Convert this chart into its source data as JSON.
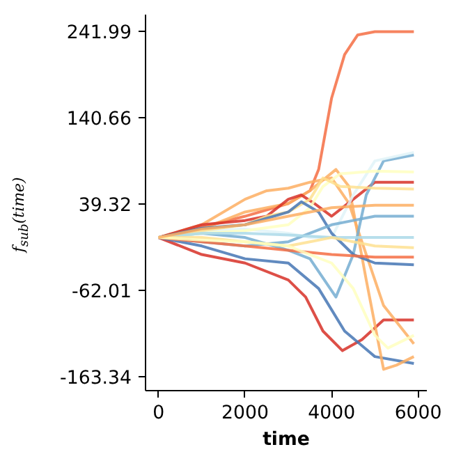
{
  "chart_data": {
    "type": "line",
    "xlabel": "time",
    "ylabel": "f$_{sub}$(time)",
    "xlim": [
      -300,
      6200
    ],
    "ylim": [
      -180,
      262
    ],
    "xticks": [
      0,
      2000,
      4000,
      6000
    ],
    "yticks": [
      241.99,
      140.66,
      39.32,
      -62.01,
      -163.34
    ],
    "grid": false,
    "line_style": "solid",
    "marker": "none",
    "series": [
      {
        "color": "#f46d43",
        "x": [
          0,
          1000,
          2000,
          3000,
          3500,
          3700,
          4000,
          4300,
          4600,
          5000,
          5900
        ],
        "values": [
          0,
          12,
          25,
          40,
          55,
          80,
          164,
          215,
          238,
          242,
          242
        ]
      },
      {
        "color": "#d73027",
        "x": [
          0,
          1000,
          2000,
          3000,
          3400,
          3800,
          4250,
          4700,
          5200,
          5900
        ],
        "values": [
          0,
          -20,
          -30,
          -50,
          -70,
          -110,
          -133,
          -120,
          -97,
          -97
        ]
      },
      {
        "color": "#4575b4",
        "x": [
          0,
          1000,
          2000,
          3000,
          3700,
          4300,
          5000,
          5900
        ],
        "values": [
          0,
          -10,
          -25,
          -30,
          -60,
          -110,
          -140,
          -148
        ]
      },
      {
        "color": "#fdae61",
        "x": [
          0,
          1000,
          2000,
          3000,
          3500,
          4100,
          4400,
          4800,
          5200,
          5500,
          5900
        ],
        "values": [
          0,
          10,
          30,
          40,
          55,
          80,
          60,
          -50,
          -155,
          -150,
          -140
        ]
      },
      {
        "color": "#fdae61",
        "x": [
          0,
          1000,
          2000,
          2500,
          3000,
          3500,
          4000,
          4400,
          4800,
          5200,
          5900
        ],
        "values": [
          0,
          15,
          45,
          55,
          58,
          65,
          70,
          40,
          -20,
          -80,
          -125
        ]
      },
      {
        "color": "#d73027",
        "x": [
          0,
          1000,
          2000,
          2500,
          3000,
          3300,
          3600,
          4000,
          4500,
          5000,
          5900
        ],
        "values": [
          0,
          15,
          20,
          25,
          45,
          50,
          40,
          25,
          45,
          65,
          65
        ]
      },
      {
        "color": "#74add1",
        "x": [
          0,
          1000,
          2000,
          3000,
          3500,
          4100,
          4500,
          4800,
          5200,
          5900
        ],
        "values": [
          0,
          5,
          0,
          -15,
          -25,
          -70,
          -20,
          50,
          90,
          97
        ]
      },
      {
        "color": "#e0f3f8",
        "x": [
          0,
          1000,
          2000,
          3000,
          3500,
          4000,
          4500,
          5000,
          5900
        ],
        "values": [
          0,
          8,
          10,
          5,
          0,
          0,
          50,
          90,
          100
        ]
      },
      {
        "color": "#ffffbf",
        "x": [
          0,
          1000,
          2000,
          3000,
          3500,
          3800,
          4200,
          5000,
          5900
        ],
        "values": [
          0,
          5,
          8,
          15,
          35,
          60,
          75,
          78,
          77
        ]
      },
      {
        "color": "#fee090",
        "x": [
          0,
          1000,
          2000,
          2500,
          3000,
          3500,
          3800,
          4200,
          5000,
          5900
        ],
        "values": [
          0,
          8,
          15,
          25,
          30,
          45,
          70,
          60,
          58,
          57
        ]
      },
      {
        "color": "#4575b4",
        "x": [
          0,
          1000,
          2000,
          3000,
          3300,
          3700,
          4000,
          4500,
          5000,
          5900
        ],
        "values": [
          0,
          11,
          15,
          30,
          42,
          30,
          5,
          -20,
          -30,
          -32
        ]
      },
      {
        "color": "#74add1",
        "x": [
          0,
          1000,
          2000,
          3000,
          3500,
          4000,
          4500,
          5000,
          5900
        ],
        "values": [
          0,
          -5,
          -10,
          -5,
          5,
          15,
          20,
          25,
          25
        ]
      },
      {
        "color": "#abd9e9",
        "x": [
          0,
          1000,
          2000,
          3000,
          4000,
          5000,
          5900
        ],
        "values": [
          0,
          5,
          5,
          3,
          0,
          0,
          0
        ]
      },
      {
        "color": "#f46d43",
        "x": [
          0,
          1000,
          2000,
          3000,
          4000,
          5000,
          5900
        ],
        "values": [
          0,
          -5,
          -10,
          -15,
          -20,
          -23,
          -23
        ]
      },
      {
        "color": "#fee090",
        "x": [
          0,
          1000,
          2000,
          3000,
          3500,
          4000,
          4500,
          5000,
          5900
        ],
        "values": [
          0,
          0,
          -5,
          -10,
          -5,
          0,
          -5,
          -10,
          -12
        ]
      },
      {
        "color": "#ffffbf",
        "x": [
          0,
          1000,
          2000,
          3000,
          3500,
          4000,
          4500,
          5000,
          5300,
          5900
        ],
        "values": [
          0,
          -3,
          -5,
          -10,
          -20,
          -30,
          -60,
          -115,
          -130,
          -115
        ]
      },
      {
        "color": "#fdae61",
        "x": [
          0,
          1000,
          2000,
          3000,
          3500,
          4000,
          5000,
          5900
        ],
        "values": [
          0,
          10,
          15,
          25,
          30,
          35,
          38,
          38
        ]
      }
    ]
  }
}
